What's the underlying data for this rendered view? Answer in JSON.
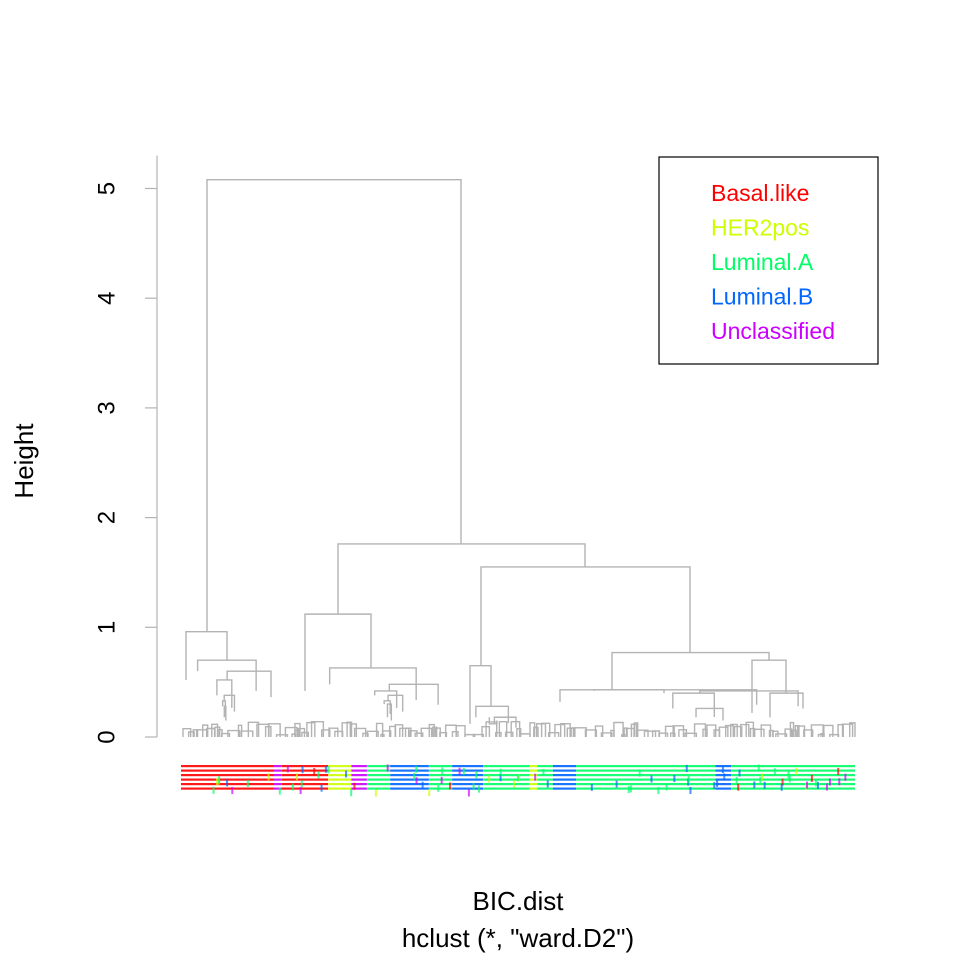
{
  "chart_data": {
    "type": "dendrogram",
    "title": "",
    "xlabel": "BIC.dist",
    "sub": "hclust (*, \"ward.D2\")",
    "ylabel": "Height",
    "ylim": [
      0,
      5.3
    ],
    "y_ticks": [
      0,
      1,
      2,
      3,
      4,
      5
    ],
    "line_color": "#b3b3b3",
    "legend": {
      "position": "top-right",
      "entries": [
        {
          "label": "Basal.like",
          "color": "#ff0000"
        },
        {
          "label": "HER2pos",
          "color": "#ccff00"
        },
        {
          "label": "Luminal.A",
          "color": "#00ff66"
        },
        {
          "label": "Luminal.B",
          "color": "#0066ff"
        },
        {
          "label": "Unclassified",
          "color": "#cc00ff"
        }
      ]
    },
    "merges": {
      "root": {
        "height": 5.08
      },
      "left_group": {
        "height": 0.96,
        "sub_heights": [
          0.7,
          0.6,
          0.52,
          0.38,
          0.33,
          0.28
        ]
      },
      "right_group": {
        "height": 1.76
      },
      "middle_group": {
        "height": 1.12,
        "sub_heights": [
          0.63,
          0.48,
          0.42,
          0.38,
          0.33,
          0.3
        ]
      },
      "right_subgroup": {
        "height": 1.55
      },
      "narrow_group": {
        "height": 0.65
      },
      "far_right_group": {
        "height": 0.77,
        "sub_heights": [
          0.7,
          0.43,
          0.42,
          0.4,
          0.26
        ]
      }
    },
    "leaf_class_blocks": [
      {
        "class": "Basal.like",
        "weight": 12
      },
      {
        "class": "Unclassified",
        "weight": 1
      },
      {
        "class": "Basal.like",
        "weight": 6
      },
      {
        "class": "HER2pos",
        "weight": 3
      },
      {
        "class": "Unclassified",
        "weight": 2
      },
      {
        "class": "Luminal.A",
        "weight": 3
      },
      {
        "class": "Luminal.B",
        "weight": 5
      },
      {
        "class": "Luminal.A",
        "weight": 3
      },
      {
        "class": "Luminal.B",
        "weight": 4
      },
      {
        "class": "Luminal.A",
        "weight": 6
      },
      {
        "class": "HER2pos",
        "weight": 1
      },
      {
        "class": "Luminal.A",
        "weight": 2
      },
      {
        "class": "Luminal.B",
        "weight": 3
      },
      {
        "class": "Luminal.A",
        "weight": 18
      },
      {
        "class": "Luminal.B",
        "weight": 2
      },
      {
        "class": "Luminal.A",
        "weight": 16
      }
    ]
  }
}
